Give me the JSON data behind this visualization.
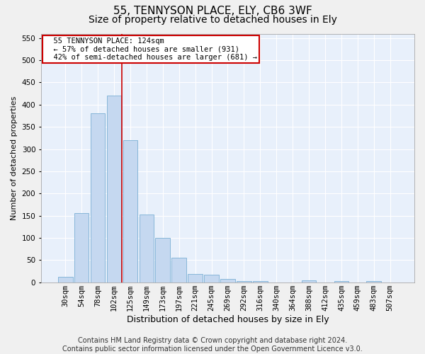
{
  "title1": "55, TENNYSON PLACE, ELY, CB6 3WF",
  "title2": "Size of property relative to detached houses in Ely",
  "xlabel": "Distribution of detached houses by size in Ely",
  "ylabel": "Number of detached properties",
  "bar_values": [
    13,
    155,
    380,
    420,
    320,
    152,
    100,
    55,
    18,
    17,
    8,
    3,
    3,
    0,
    0,
    5,
    0,
    2,
    0,
    2,
    0
  ],
  "bar_labels": [
    "30sqm",
    "54sqm",
    "78sqm",
    "102sqm",
    "125sqm",
    "149sqm",
    "173sqm",
    "197sqm",
    "221sqm",
    "245sqm",
    "269sqm",
    "292sqm",
    "316sqm",
    "340sqm",
    "364sqm",
    "388sqm",
    "412sqm",
    "435sqm",
    "459sqm",
    "483sqm",
    "507sqm"
  ],
  "bar_color": "#c5d8f0",
  "bar_edge_color": "#7aafd4",
  "reference_line_color": "#cc0000",
  "annotation_text": "  55 TENNYSON PLACE: 124sqm\n  ← 57% of detached houses are smaller (931)\n  42% of semi-detached houses are larger (681) →",
  "annotation_box_color": "#ffffff",
  "annotation_box_edge_color": "#cc0000",
  "ylim": [
    0,
    560
  ],
  "yticks": [
    0,
    50,
    100,
    150,
    200,
    250,
    300,
    350,
    400,
    450,
    500,
    550
  ],
  "background_color": "#e8f0fb",
  "grid_color": "#ffffff",
  "footer_text": "Contains HM Land Registry data © Crown copyright and database right 2024.\nContains public sector information licensed under the Open Government Licence v3.0.",
  "title1_fontsize": 11,
  "title2_fontsize": 10,
  "xlabel_fontsize": 9,
  "ylabel_fontsize": 8,
  "tick_fontsize": 7.5,
  "footer_fontsize": 7
}
